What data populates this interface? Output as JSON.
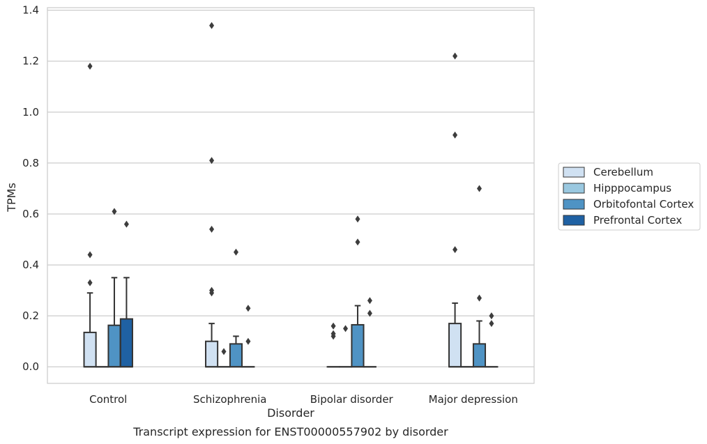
{
  "chart_data": {
    "type": "boxplot",
    "title": "Transcript expression for ENST00000557902 by disorder",
    "xlabel": "Disorder",
    "ylabel": "TPMs",
    "ylim": [
      -0.065,
      1.41
    ],
    "yticks": [
      "0.0",
      "0.2",
      "0.4",
      "0.6",
      "0.8",
      "1.0",
      "1.2",
      "1.4"
    ],
    "grid": "horizontal",
    "legend_position": "right",
    "categories": [
      "Control",
      "Schizophrenia",
      "Bipolar disorder",
      "Major depression"
    ],
    "series": [
      {
        "name": "Cerebellum",
        "color": "#d0e1f2",
        "boxes": [
          {
            "q1": 0,
            "median": 0,
            "q3": 0.135,
            "whisker_low": 0,
            "whisker_high": 0.29,
            "outliers": [
              0.33,
              0.44,
              1.18
            ]
          },
          {
            "q1": 0,
            "median": 0,
            "q3": 0.1,
            "whisker_low": 0,
            "whisker_high": 0.17,
            "outliers": [
              0.29,
              0.3,
              0.54,
              0.81,
              1.34
            ]
          },
          {
            "q1": 0,
            "median": 0,
            "q3": 0,
            "whisker_low": 0,
            "whisker_high": 0,
            "outliers": [
              0.12,
              0.13,
              0.16
            ]
          },
          {
            "q1": 0,
            "median": 0,
            "q3": 0.17,
            "whisker_low": 0,
            "whisker_high": 0.25,
            "outliers": [
              0.46,
              0.91,
              1.22
            ]
          }
        ]
      },
      {
        "name": "Hipppocampus",
        "color": "#9ac8e0",
        "boxes": [
          {
            "q1": 0,
            "median": 0,
            "q3": 0,
            "whisker_low": 0,
            "whisker_high": 0,
            "outliers": []
          },
          {
            "q1": 0,
            "median": 0,
            "q3": 0,
            "whisker_low": 0,
            "whisker_high": 0,
            "outliers": [
              0.06
            ]
          },
          {
            "q1": 0,
            "median": 0,
            "q3": 0,
            "whisker_low": 0,
            "whisker_high": 0,
            "outliers": [
              0.15
            ]
          },
          {
            "q1": 0,
            "median": 0,
            "q3": 0,
            "whisker_low": 0,
            "whisker_high": 0,
            "outliers": []
          }
        ]
      },
      {
        "name": "Orbitofontal Cortex",
        "color": "#4f93c4",
        "boxes": [
          {
            "q1": 0,
            "median": 0,
            "q3": 0.163,
            "whisker_low": 0,
            "whisker_high": 0.35,
            "outliers": [
              0.61
            ]
          },
          {
            "q1": 0,
            "median": 0,
            "q3": 0.09,
            "whisker_low": 0,
            "whisker_high": 0.12,
            "outliers": [
              0.45
            ]
          },
          {
            "q1": 0,
            "median": 0,
            "q3": 0.165,
            "whisker_low": 0,
            "whisker_high": 0.24,
            "outliers": [
              0.49,
              0.58
            ]
          },
          {
            "q1": 0,
            "median": 0,
            "q3": 0.09,
            "whisker_low": 0,
            "whisker_high": 0.18,
            "outliers": [
              0.27,
              0.7
            ]
          }
        ]
      },
      {
        "name": "Prefrontal Cortex",
        "color": "#1f61a3",
        "boxes": [
          {
            "q1": 0,
            "median": 0,
            "q3": 0.188,
            "whisker_low": 0,
            "whisker_high": 0.35,
            "outliers": [
              0.56
            ]
          },
          {
            "q1": 0,
            "median": 0,
            "q3": 0,
            "whisker_low": 0,
            "whisker_high": 0,
            "outliers": [
              0.1,
              0.23
            ]
          },
          {
            "q1": 0,
            "median": 0,
            "q3": 0,
            "whisker_low": 0,
            "whisker_high": 0,
            "outliers": [
              0.21,
              0.26
            ]
          },
          {
            "q1": 0,
            "median": 0,
            "q3": 0,
            "whisker_low": 0,
            "whisker_high": 0,
            "outliers": [
              0.17,
              0.2
            ]
          }
        ]
      }
    ]
  }
}
